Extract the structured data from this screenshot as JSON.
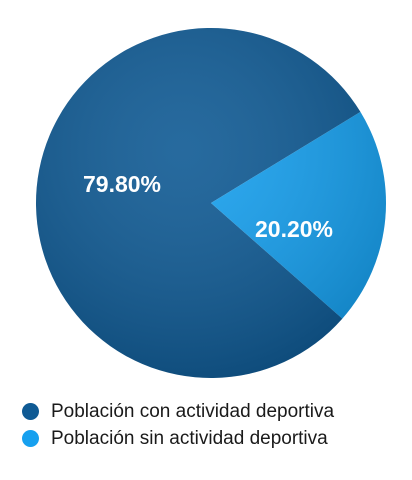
{
  "chart_data": {
    "type": "pie",
    "title": "",
    "slices": [
      {
        "name": "Población con actividad deportiva",
        "value": 79.8,
        "label": "79.80%",
        "color": "#0f5a94"
      },
      {
        "name": "Población sin actividad deportiva",
        "value": 20.2,
        "label": "20.20%",
        "color": "#16a0ef"
      }
    ],
    "legend_position": "bottom-left"
  }
}
